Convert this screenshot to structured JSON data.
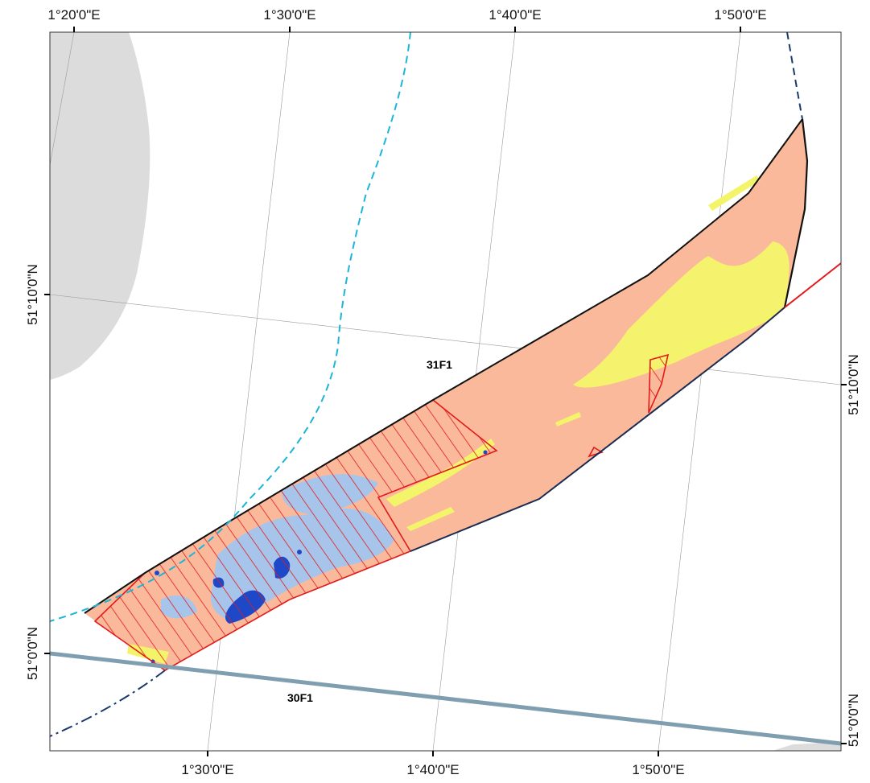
{
  "map": {
    "top_labels": [
      "1°20'0\"E",
      "1°30'0\"E",
      "1°40'0\"E",
      "1°50'0\"E"
    ],
    "bottom_labels": [
      "1°30'0\"E",
      "1°40'0\"E",
      "1°50'0\"E"
    ],
    "left_labels": [
      "51°10'0\"N",
      "51°0'0\"N"
    ],
    "right_labels": [
      "51°10'0\"N",
      "51°0'0\"N"
    ],
    "grid_cells": [
      "31F1",
      "30F1"
    ],
    "colors": {
      "land": "#dcdcdc",
      "zone_fill": "#f9b99a",
      "sediment_highlight": "#f4f46a",
      "light_blue_patches": "#a7c5ea",
      "dark_blue_patches": "#1f48c8",
      "hatch": "#e31a1c",
      "boundary": "#111111",
      "dashed_cyan": "#1cb5d8",
      "dashed_navy": "#1a3a6e",
      "grid_line": "#7f9fb0"
    },
    "icons": [
      "land-mass-icon",
      "hatched-area-icon"
    ]
  }
}
